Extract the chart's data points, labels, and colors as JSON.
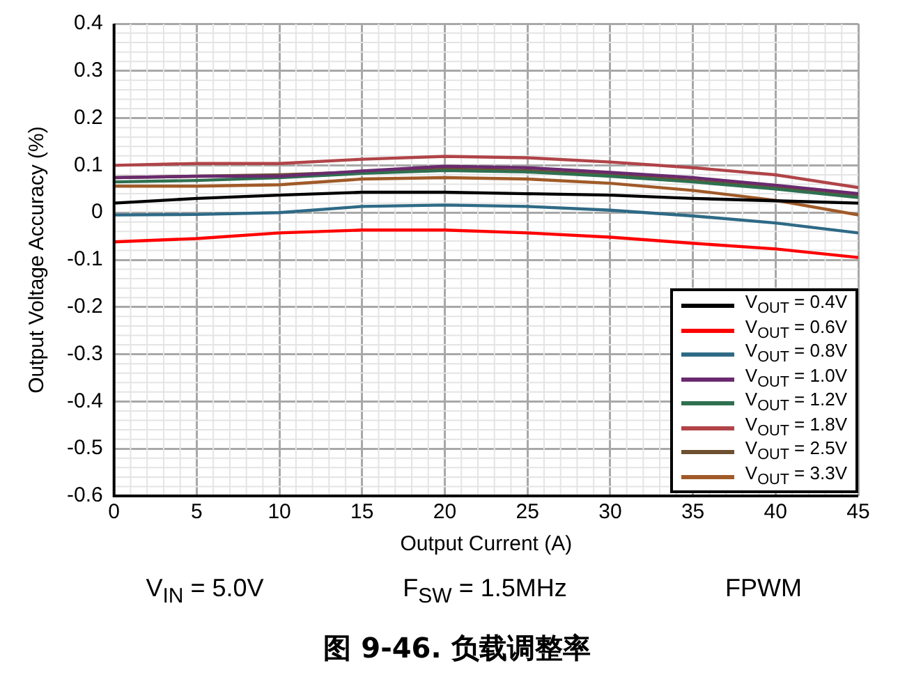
{
  "chart_data": {
    "type": "line",
    "title": "图 9-46. 负载调整率",
    "xlabel": "Output Current (A)",
    "ylabel": "Output Voltage Accuracy (%)",
    "x": [
      0,
      5,
      10,
      15,
      20,
      25,
      30,
      35,
      40,
      45
    ],
    "series": [
      {
        "name": "V$_{OUT}$ = 0.4V",
        "color": "#000000",
        "values": [
          0.02,
          0.03,
          0.037,
          0.043,
          0.043,
          0.04,
          0.037,
          0.03,
          0.025,
          0.02
        ]
      },
      {
        "name": "V$_{OUT}$ = 0.6V",
        "color": "#ff0000",
        "values": [
          -0.062,
          -0.055,
          -0.043,
          -0.037,
          -0.037,
          -0.043,
          -0.052,
          -0.065,
          -0.077,
          -0.095
        ]
      },
      {
        "name": "V$_{OUT}$ = 0.8V",
        "color": "#2e6a86",
        "values": [
          -0.005,
          -0.004,
          0.0,
          0.013,
          0.016,
          0.013,
          0.005,
          -0.007,
          -0.022,
          -0.043
        ]
      },
      {
        "name": "V$_{OUT}$ = 1.0V",
        "color": "#6a2a6e",
        "values": [
          0.074,
          0.077,
          0.077,
          0.088,
          0.098,
          0.095,
          0.085,
          0.074,
          0.058,
          0.04
        ]
      },
      {
        "name": "V$_{OUT}$ = 1.2V",
        "color": "#2e7050",
        "values": [
          0.065,
          0.068,
          0.074,
          0.083,
          0.089,
          0.086,
          0.077,
          0.065,
          0.05,
          0.032
        ]
      },
      {
        "name": "V$_{OUT}$ = 1.8V",
        "color": "#b04448",
        "values": [
          0.1,
          0.104,
          0.104,
          0.113,
          0.119,
          0.116,
          0.107,
          0.095,
          0.08,
          0.053
        ]
      },
      {
        "name": "V$_{OUT}$ = 2.5V",
        "color": "#6e5030",
        "values": [
          0.074,
          0.077,
          0.08,
          0.086,
          0.092,
          0.089,
          0.08,
          0.068,
          0.053,
          0.037
        ]
      },
      {
        "name": "V$_{OUT}$ = 3.3V",
        "color": "#a05a28",
        "values": [
          0.056,
          0.056,
          0.059,
          0.071,
          0.074,
          0.071,
          0.062,
          0.047,
          0.026,
          -0.005
        ]
      }
    ],
    "xlim": [
      0,
      45
    ],
    "xticks": [
      0,
      5,
      10,
      15,
      20,
      25,
      30,
      35,
      40,
      45
    ],
    "ylim": [
      -0.6,
      0.4
    ],
    "yticks": [
      -0.6,
      -0.5,
      -0.4,
      -0.3,
      -0.2,
      -0.1,
      0,
      0.1,
      0.2,
      0.3,
      0.4
    ],
    "grid": true,
    "legend": "bottom right",
    "marker": "none",
    "line_style": "solid",
    "annotations": [
      "V$_{IN}$ = 5.0V",
      "F$_{SW}$ = 1.5MHz",
      "FPWM"
    ]
  }
}
